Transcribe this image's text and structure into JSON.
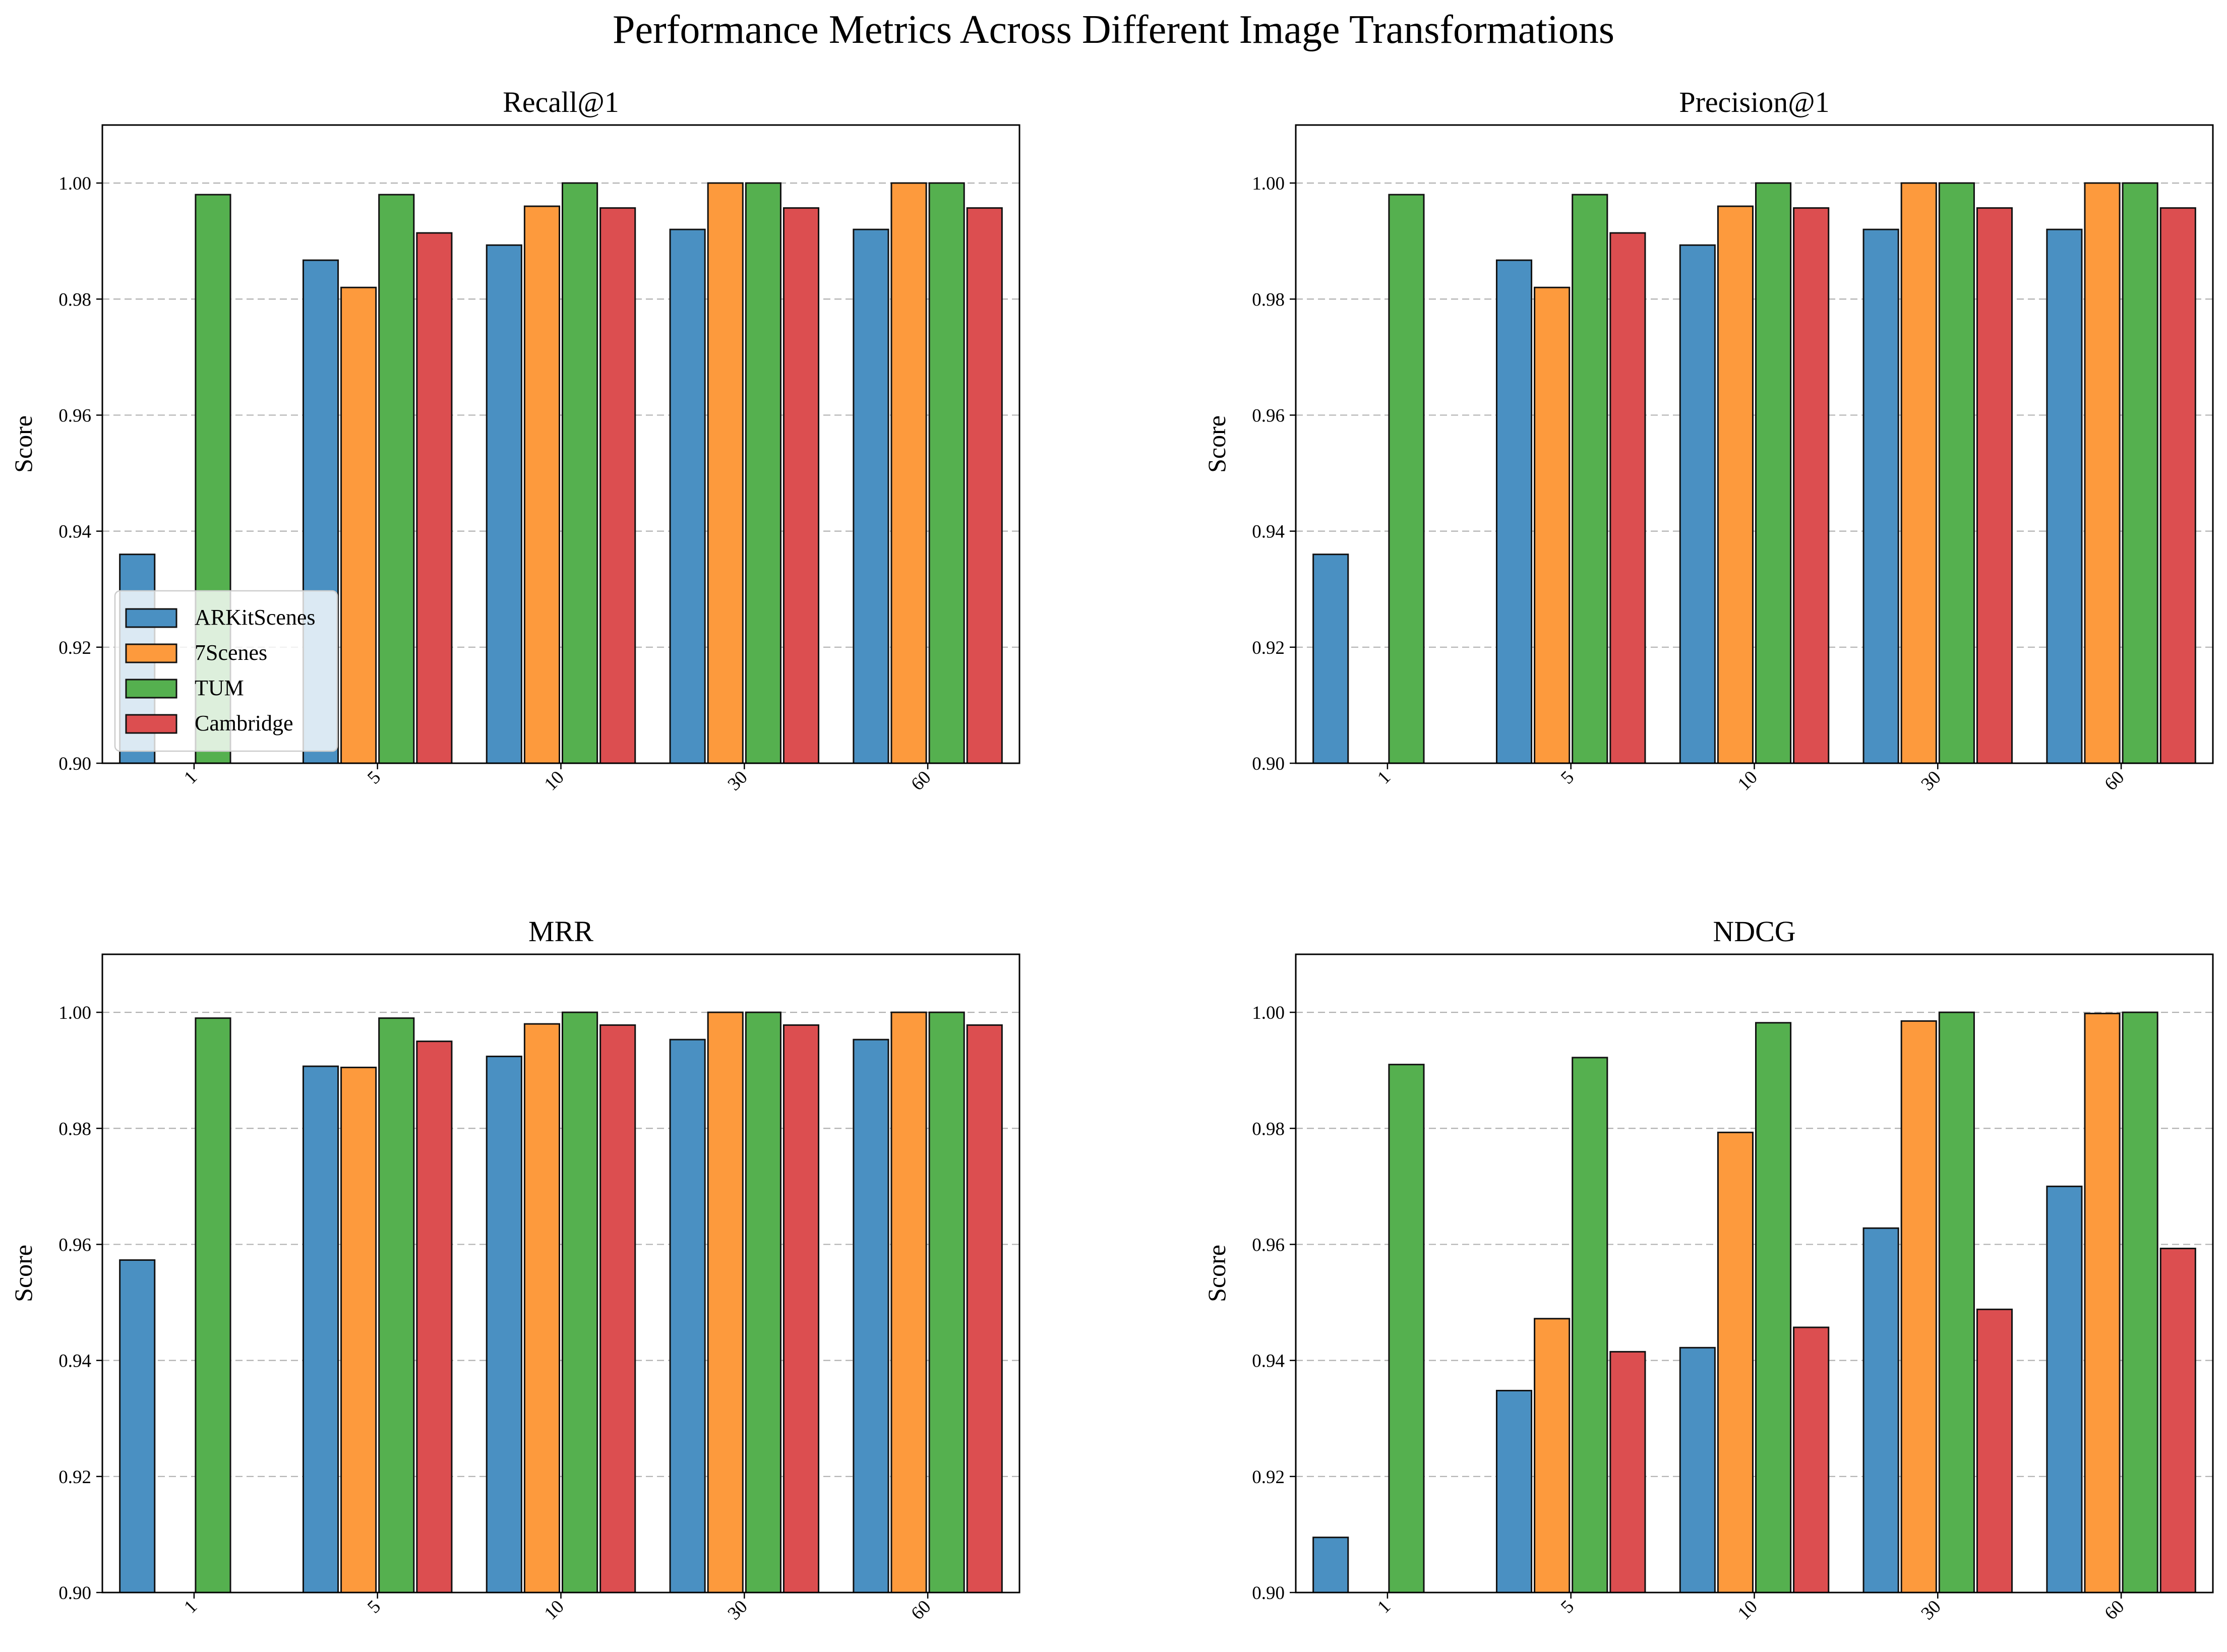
{
  "suptitle": "Performance Metrics Across Different Image Transformations",
  "colors": {
    "series": [
      "#4a90c2",
      "#fd9a3d",
      "#55b04f",
      "#dc4e50"
    ],
    "grid": "#b0b0b0",
    "edge": "#111111"
  },
  "chart_data": [
    {
      "type": "bar",
      "title": "Recall@1",
      "xlabel": "",
      "ylabel": "Score",
      "ylim": [
        0.9,
        1.01
      ],
      "yticks": [
        "0.90",
        "0.92",
        "0.94",
        "0.96",
        "0.98",
        "1.00"
      ],
      "categories": [
        "1",
        "5",
        "10",
        "30",
        "60"
      ],
      "grid": "y-dashed",
      "legend": "lower-left",
      "series": [
        {
          "name": "ARKitScenes",
          "values": [
            0.936,
            0.9867,
            0.9893,
            0.992,
            0.992
          ]
        },
        {
          "name": "7Scenes",
          "values": [
            0.89,
            0.982,
            0.996,
            1.0,
            1.0
          ]
        },
        {
          "name": "TUM",
          "values": [
            0.998,
            0.998,
            1.0,
            1.0,
            1.0
          ]
        },
        {
          "name": "Cambridge",
          "values": [
            0.89,
            0.9914,
            0.9957,
            0.9957,
            0.9957
          ]
        }
      ]
    },
    {
      "type": "bar",
      "title": "Precision@1",
      "xlabel": "",
      "ylabel": "Score",
      "ylim": [
        0.9,
        1.01
      ],
      "yticks": [
        "0.90",
        "0.92",
        "0.94",
        "0.96",
        "0.98",
        "1.00"
      ],
      "categories": [
        "1",
        "5",
        "10",
        "30",
        "60"
      ],
      "grid": "y-dashed",
      "legend": "none",
      "series": [
        {
          "name": "ARKitScenes",
          "values": [
            0.936,
            0.9867,
            0.9893,
            0.992,
            0.992
          ]
        },
        {
          "name": "7Scenes",
          "values": [
            0.89,
            0.982,
            0.996,
            1.0,
            1.0
          ]
        },
        {
          "name": "TUM",
          "values": [
            0.998,
            0.998,
            1.0,
            1.0,
            1.0
          ]
        },
        {
          "name": "Cambridge",
          "values": [
            0.89,
            0.9914,
            0.9957,
            0.9957,
            0.9957
          ]
        }
      ]
    },
    {
      "type": "bar",
      "title": "MRR",
      "xlabel": "",
      "ylabel": "Score",
      "ylim": [
        0.9,
        1.01
      ],
      "yticks": [
        "0.90",
        "0.92",
        "0.94",
        "0.96",
        "0.98",
        "1.00"
      ],
      "categories": [
        "1",
        "5",
        "10",
        "30",
        "60"
      ],
      "grid": "y-dashed",
      "legend": "none",
      "series": [
        {
          "name": "ARKitScenes",
          "values": [
            0.9573,
            0.9907,
            0.9924,
            0.9953,
            0.9953
          ]
        },
        {
          "name": "7Scenes",
          "values": [
            0.89,
            0.9905,
            0.998,
            1.0,
            1.0
          ]
        },
        {
          "name": "TUM",
          "values": [
            0.999,
            0.999,
            1.0,
            1.0,
            1.0
          ]
        },
        {
          "name": "Cambridge",
          "values": [
            0.89,
            0.995,
            0.9978,
            0.9978,
            0.9978
          ]
        }
      ]
    },
    {
      "type": "bar",
      "title": "NDCG",
      "xlabel": "",
      "ylabel": "Score",
      "ylim": [
        0.9,
        1.01
      ],
      "yticks": [
        "0.90",
        "0.92",
        "0.94",
        "0.96",
        "0.98",
        "1.00"
      ],
      "categories": [
        "1",
        "5",
        "10",
        "30",
        "60"
      ],
      "grid": "y-dashed",
      "legend": "none",
      "series": [
        {
          "name": "ARKitScenes",
          "values": [
            0.9095,
            0.9348,
            0.9422,
            0.9628,
            0.97
          ]
        },
        {
          "name": "7Scenes",
          "values": [
            0.89,
            0.9472,
            0.9793,
            0.9985,
            0.9998
          ]
        },
        {
          "name": "TUM",
          "values": [
            0.991,
            0.9922,
            0.9982,
            1.0,
            1.0
          ]
        },
        {
          "name": "Cambridge",
          "values": [
            0.89,
            0.9415,
            0.9457,
            0.9488,
            0.9593
          ]
        }
      ]
    }
  ]
}
